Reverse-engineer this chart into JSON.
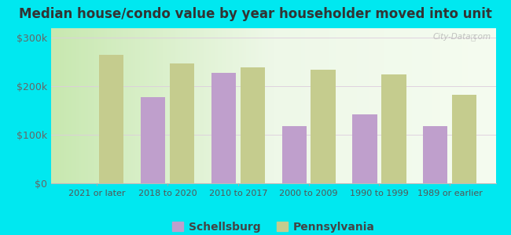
{
  "title": "Median house/condo value by year householder moved into unit",
  "categories": [
    "2021 or later",
    "2018 to 2020",
    "2010 to 2017",
    "2000 to 2009",
    "1990 to 1999",
    "1989 or earlier"
  ],
  "schellsburg": [
    null,
    178000,
    228000,
    118000,
    142000,
    118000
  ],
  "pennsylvania": [
    265000,
    248000,
    240000,
    235000,
    224000,
    183000
  ],
  "schellsburg_color": "#bf9fcc",
  "pennsylvania_color": "#c5cc8e",
  "bg_outer": "#00e8f0",
  "title_color": "#333333",
  "watermark": "City-Data.com",
  "ylim": [
    0,
    320000
  ],
  "yticks": [
    0,
    100000,
    200000,
    300000
  ],
  "ytick_labels": [
    "$0",
    "$100k",
    "$200k",
    "$300k"
  ],
  "legend_schellsburg": "Schellsburg",
  "legend_pennsylvania": "Pennsylvania",
  "bar_width": 0.35,
  "figsize": [
    6.5,
    3.0
  ],
  "dpi": 100
}
